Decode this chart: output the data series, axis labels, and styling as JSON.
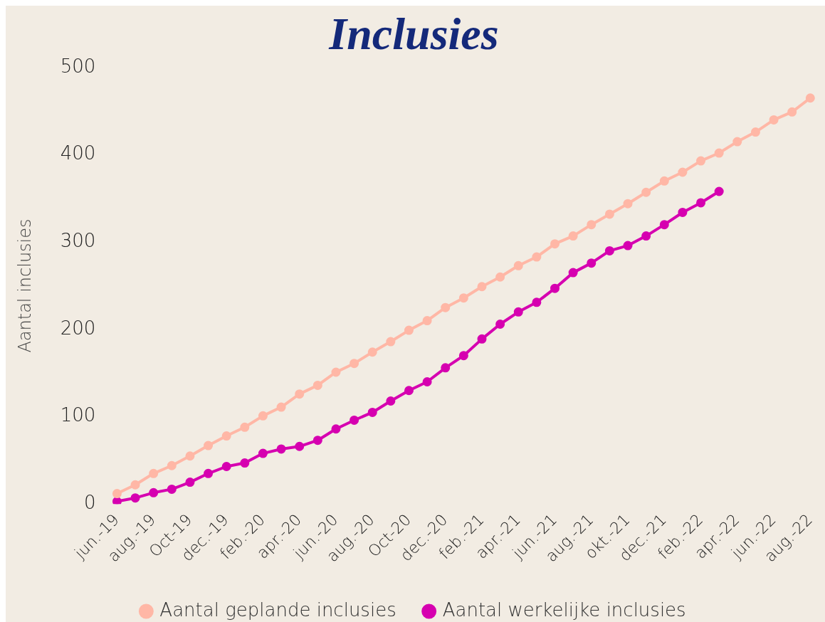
{
  "chart_data": {
    "type": "line",
    "title": "Inclusies",
    "ylabel": "Aantal inclusies",
    "categories": [
      "jun.-19",
      null,
      "aug.-19",
      null,
      "Oct-19",
      null,
      "dec.-19",
      null,
      "feb.-20",
      null,
      "apr.-20",
      null,
      "jun.-20",
      null,
      "aug.-20",
      null,
      "Oct-20",
      null,
      "dec.-20",
      null,
      "feb.-21",
      null,
      "apr.-21",
      null,
      "jun.-21",
      null,
      "aug.-21",
      null,
      "okt.-21",
      null,
      "dec.-21",
      null,
      "feb.-22",
      null,
      "apr.-22",
      null,
      "jun.-22",
      null,
      "aug.-22"
    ],
    "series": [
      {
        "name": "Aantal geplande inclusies",
        "color": "#ffb7a6",
        "values": [
          12,
          22,
          35,
          44,
          55,
          67,
          78,
          88,
          101,
          111,
          126,
          136,
          151,
          161,
          174,
          186,
          199,
          210,
          225,
          236,
          249,
          260,
          273,
          283,
          298,
          307,
          320,
          332,
          344,
          357,
          370,
          380,
          393,
          402,
          415,
          426,
          440,
          449,
          465
        ]
      },
      {
        "name": "Aantal werkelijke inclusies",
        "color": "#d600b0",
        "values": [
          3,
          7,
          13,
          17,
          25,
          35,
          43,
          47,
          58,
          63,
          66,
          73,
          86,
          96,
          105,
          118,
          130,
          140,
          156,
          170,
          189,
          206,
          220,
          231,
          247,
          265,
          276,
          290,
          296,
          307,
          320,
          334,
          345,
          358,
          null,
          null,
          null,
          null,
          null
        ]
      }
    ],
    "ylim": [
      0,
      500
    ],
    "yticks": [
      0,
      100,
      200,
      300,
      400,
      500
    ],
    "grid": false,
    "legend": "bottom",
    "marker": "circle",
    "line_style": "solid"
  }
}
